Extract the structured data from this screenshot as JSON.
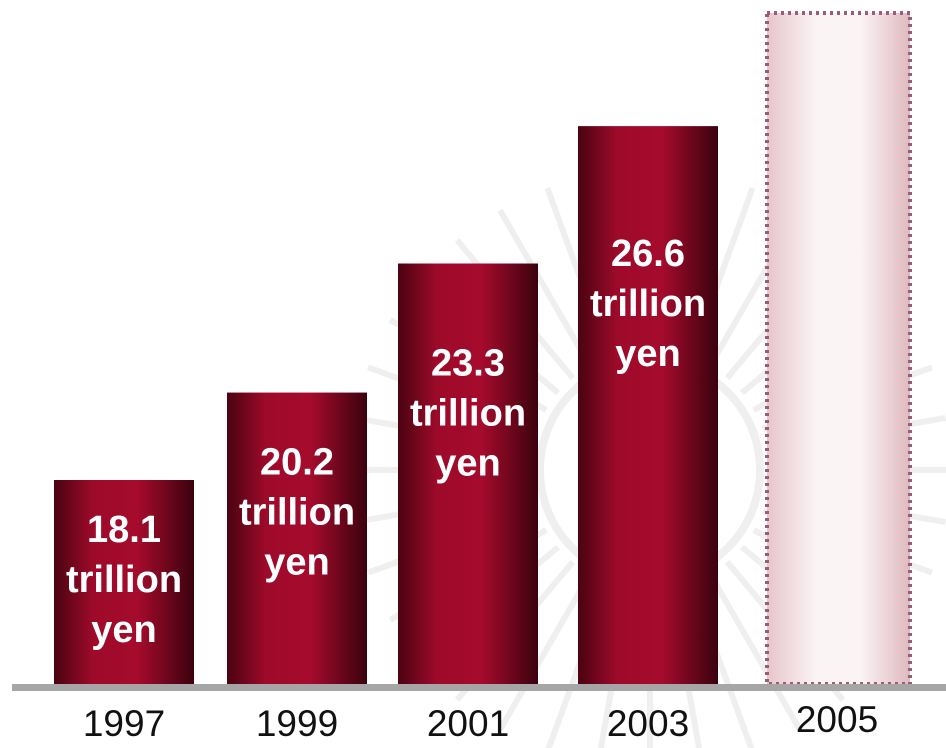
{
  "chart_data": {
    "type": "bar",
    "title": "",
    "xlabel": "",
    "ylabel": "",
    "categories": [
      "1997",
      "1999",
      "2001",
      "2003",
      "2005"
    ],
    "values": [
      18.1,
      20.2,
      23.3,
      26.6,
      null
    ],
    "data_labels": [
      [
        "18.1",
        "trillion",
        "yen"
      ],
      [
        "20.2",
        "trillion",
        "yen"
      ],
      [
        "23.3",
        "trillion",
        "yen"
      ],
      [
        "26.6",
        "trillion",
        "yen"
      ],
      null
    ],
    "placeholder_category": "2005",
    "ylim": [
      13.2,
      27.9
    ],
    "grid": false,
    "legend": "none",
    "colors": {
      "bar_main": "#9e0a2a",
      "bar_dark": "#4a0311",
      "placeholder_fill": "#f3dede",
      "placeholder_border": "#9c5c72",
      "axis": "#a6a6a6",
      "tick_text": "#111111",
      "data_label_text": "#ffffff"
    }
  }
}
